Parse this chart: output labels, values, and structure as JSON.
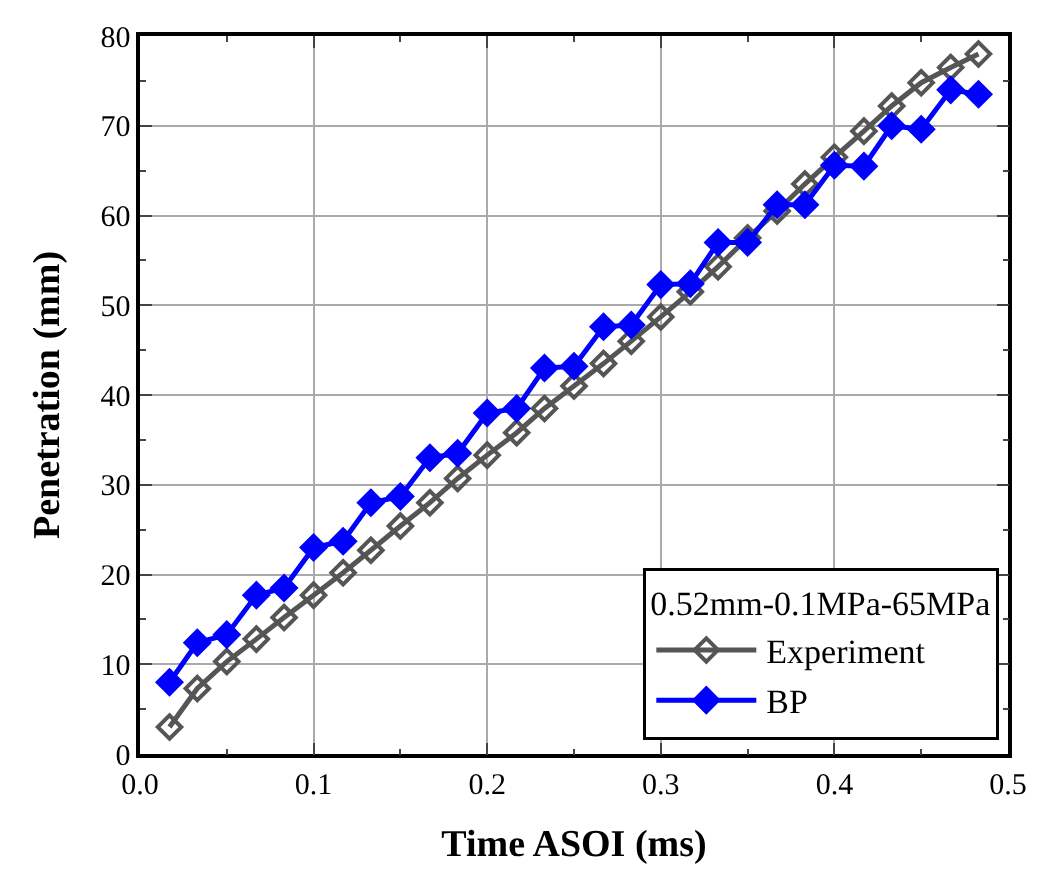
{
  "chart_data": {
    "type": "line",
    "xlabel": "Time ASOI (ms)",
    "ylabel": "Penetration (mm)",
    "legend_title": "0.52mm-0.1MPa-65MPa",
    "x": [
      0.017,
      0.033,
      0.05,
      0.067,
      0.083,
      0.1,
      0.117,
      0.133,
      0.15,
      0.167,
      0.183,
      0.2,
      0.217,
      0.233,
      0.25,
      0.267,
      0.283,
      0.3,
      0.317,
      0.333,
      0.35,
      0.367,
      0.383,
      0.4,
      0.417,
      0.433,
      0.45,
      0.467,
      0.483
    ],
    "series": [
      {
        "name": "Experiment",
        "color": "#555555",
        "marker": "diamond-open",
        "values": [
          3,
          7.3,
          10.3,
          12.8,
          15.2,
          17.7,
          20.2,
          22.7,
          25.4,
          28,
          30.7,
          33.3,
          35.8,
          38.5,
          41,
          43.5,
          46,
          48.7,
          51.5,
          54.3,
          57.5,
          60.5,
          63.5,
          66.5,
          69.4,
          72.2,
          74.8,
          76.5,
          78
        ]
      },
      {
        "name": "BP",
        "color": "#0000ff",
        "marker": "diamond",
        "values": [
          8,
          12.4,
          13.3,
          17.7,
          18.5,
          23,
          23.7,
          28,
          28.7,
          33,
          33.5,
          38,
          38.5,
          43,
          43.2,
          47.6,
          47.8,
          52.3,
          52.4,
          57,
          57,
          61.2,
          61.2,
          65.6,
          65.5,
          70,
          69.6,
          74,
          73.5
        ]
      }
    ],
    "xlim": [
      0,
      0.5
    ],
    "xticks": [
      {
        "value": 0,
        "label": "0.0"
      },
      0.1,
      0.2,
      0.3,
      0.4,
      0.5
    ],
    "ylim": [
      0,
      80
    ],
    "yticks": [
      0,
      10,
      20,
      30,
      40,
      50,
      60,
      70,
      80
    ],
    "grid": true,
    "legend": "bottom right",
    "line_style": "solid"
  }
}
